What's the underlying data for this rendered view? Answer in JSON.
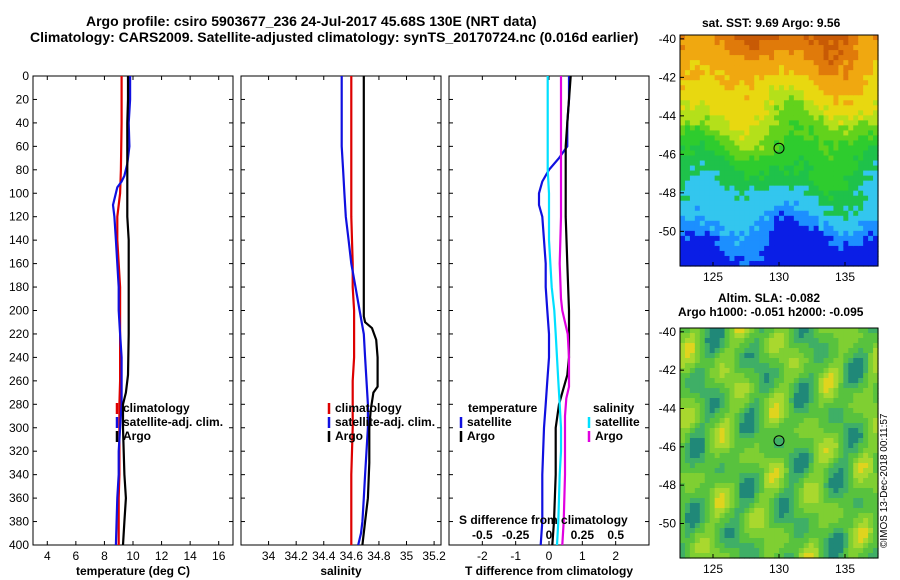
{
  "header": {
    "line1": "Argo profile: csiro 5903677_236 24-Jul-2017 45.68S 130E (NRT data)",
    "line2": "Climatology: CARS2009. Satellite-adjusted climatology: synTS_20170724.nc (0.016d earlier)"
  },
  "colors": {
    "climatology": "#dd0000",
    "satellite": "#1010e0",
    "argo": "#000000",
    "sat_salinity": "#00e0ff",
    "clim_salinity": "#e000e0"
  },
  "chart_data": [
    {
      "type": "line",
      "id": "temperature",
      "xlabel": "temperature (deg C)",
      "ylabel": "",
      "xlim": [
        3,
        17
      ],
      "ylim": [
        400,
        0
      ],
      "xticks": [
        4,
        6,
        8,
        10,
        12,
        14,
        16
      ],
      "yticks": [
        0,
        20,
        40,
        60,
        80,
        100,
        120,
        140,
        160,
        180,
        200,
        220,
        240,
        260,
        280,
        300,
        320,
        340,
        360,
        380,
        400
      ],
      "legend": [
        "climatology",
        "satellite-adj. clim.",
        "Argo"
      ],
      "series": [
        {
          "name": "climatology",
          "color": "#dd0000",
          "x": [
            9.2,
            9.2,
            9.15,
            9.1,
            9.0,
            8.9,
            8.9,
            9.0,
            9.1,
            9.1,
            9.1,
            9.1,
            9.1,
            9.05,
            9.05,
            9.05,
            9.05,
            9.0,
            9.0
          ],
          "y": [
            0,
            40,
            80,
            100,
            110,
            120,
            140,
            160,
            180,
            200,
            220,
            240,
            260,
            280,
            300,
            320,
            340,
            360,
            400
          ]
        },
        {
          "name": "satellite-adj. clim.",
          "color": "#1010e0",
          "x": [
            9.8,
            9.8,
            9.7,
            9.75,
            9.6,
            9.4,
            9.2,
            8.9,
            8.6,
            8.7,
            8.8,
            8.9,
            9.0,
            9.0,
            9.1,
            9.2,
            9.2,
            9.2,
            9.1,
            9.0,
            9.0,
            8.9,
            8.8
          ],
          "y": [
            0,
            20,
            40,
            60,
            75,
            85,
            90,
            95,
            110,
            120,
            140,
            160,
            180,
            200,
            220,
            240,
            260,
            280,
            300,
            320,
            340,
            360,
            400
          ]
        },
        {
          "name": "Argo",
          "color": "#000000",
          "x": [
            9.65,
            9.65,
            9.6,
            9.6,
            9.6,
            9.7,
            9.7,
            9.7,
            9.65,
            9.5,
            9.3,
            9.3,
            9.4,
            9.5,
            9.4,
            9.3
          ],
          "y": [
            0,
            20,
            40,
            60,
            120,
            140,
            180,
            220,
            255,
            270,
            280,
            300,
            340,
            360,
            380,
            400
          ]
        }
      ]
    },
    {
      "type": "line",
      "id": "salinity",
      "xlabel": "salinity",
      "ylabel": "",
      "xlim": [
        33.8,
        35.25
      ],
      "ylim": [
        400,
        0
      ],
      "xticks": [
        34,
        34.2,
        34.4,
        34.6,
        34.8,
        35,
        35.2
      ],
      "xticklabels": [
        "34",
        "34.2",
        "34.4",
        "34.6",
        "34.8",
        "35",
        "35.2"
      ],
      "legend": [
        "climatology",
        "satellite-adj. clim.",
        "Argo"
      ],
      "series": [
        {
          "name": "climatology",
          "color": "#dd0000",
          "x": [
            34.6,
            34.6,
            34.6,
            34.6,
            34.61,
            34.61,
            34.62,
            34.62,
            34.62,
            34.61,
            34.61,
            34.6,
            34.6,
            34.6
          ],
          "y": [
            0,
            40,
            80,
            120,
            160,
            180,
            200,
            220,
            240,
            260,
            300,
            340,
            380,
            400
          ]
        },
        {
          "name": "satellite-adj. clim.",
          "color": "#1010e0",
          "x": [
            34.53,
            34.53,
            34.53,
            34.54,
            34.55,
            34.56,
            34.58,
            34.6,
            34.63,
            34.66,
            34.69,
            34.7,
            34.71,
            34.72,
            34.72,
            34.71,
            34.7,
            34.69,
            34.68,
            34.67,
            34.66,
            34.65
          ],
          "y": [
            0,
            20,
            60,
            80,
            100,
            120,
            140,
            160,
            180,
            200,
            220,
            240,
            260,
            280,
            300,
            320,
            340,
            360,
            380,
            390,
            395,
            400
          ]
        },
        {
          "name": "Argo",
          "color": "#000000",
          "x": [
            34.69,
            34.69,
            34.69,
            34.69,
            34.69,
            34.69,
            34.7,
            34.75,
            34.78,
            34.79,
            34.79,
            34.76,
            34.74,
            34.73,
            34.73,
            34.72,
            34.7,
            34.68
          ],
          "y": [
            0,
            40,
            100,
            160,
            200,
            205,
            210,
            215,
            225,
            240,
            265,
            270,
            285,
            300,
            330,
            360,
            380,
            400
          ]
        }
      ]
    },
    {
      "type": "line",
      "id": "difference",
      "xlabel": "T difference from climatology",
      "ylabel": "",
      "xlim": [
        -3,
        3
      ],
      "ylim": [
        400,
        0
      ],
      "xticks": [
        -2,
        -1,
        0,
        1,
        2
      ],
      "xticks_secondary": {
        "label": "S difference from climatology",
        "ticks": [
          -0.5,
          -0.25,
          0,
          0.25,
          0.5
        ],
        "ticklabels": [
          "-0.5",
          "-0.25",
          "0",
          "0.25",
          "0.5"
        ],
        "scale": "x2 of T axis"
      },
      "legend_temperature": {
        "title": "temperature",
        "items": [
          "satellite",
          "Argo"
        ]
      },
      "legend_salinity": {
        "title": "salinity",
        "items": [
          "satellite",
          "Argo"
        ]
      },
      "series": [
        {
          "name": "T satellite",
          "color": "#1010e0",
          "x": [
            0.6,
            0.6,
            0.55,
            0.55,
            0.3,
            0.0,
            -0.2,
            -0.3,
            -0.3,
            -0.2,
            -0.15,
            -0.1,
            -0.1,
            -0.05,
            0,
            0,
            -0.05,
            -0.1,
            -0.15,
            -0.2,
            -0.2,
            -0.25
          ],
          "y": [
            0,
            20,
            40,
            60,
            70,
            80,
            90,
            100,
            110,
            120,
            140,
            160,
            180,
            200,
            220,
            240,
            260,
            280,
            300,
            340,
            380,
            400
          ]
        },
        {
          "name": "T Argo",
          "color": "#000000",
          "x": [
            0.65,
            0.6,
            0.55,
            0.5,
            0.5,
            0.55,
            0.6,
            0.6,
            0.55,
            0.4,
            0.3,
            0.2,
            0.2,
            0.15,
            0.1
          ],
          "y": [
            0,
            20,
            40,
            60,
            120,
            160,
            200,
            240,
            255,
            270,
            280,
            300,
            340,
            380,
            400
          ]
        },
        {
          "name": "S satellite",
          "color": "#00e0ff",
          "x": [
            -0.01,
            -0.01,
            -0.01,
            0.0,
            0.0,
            0.02,
            0.04,
            0.05,
            0.06,
            0.07,
            0.08,
            0.09,
            0.09,
            0.08,
            0.07,
            0.06
          ],
          "y": [
            0,
            40,
            80,
            100,
            140,
            180,
            200,
            220,
            240,
            260,
            280,
            300,
            320,
            340,
            380,
            400
          ]
        },
        {
          "name": "S Argo",
          "color": "#e000e0",
          "x": [
            0.09,
            0.09,
            0.09,
            0.09,
            0.08,
            0.09,
            0.1,
            0.12,
            0.14,
            0.15,
            0.15,
            0.13,
            0.12,
            0.12,
            0.12,
            0.11,
            0.1
          ],
          "y": [
            0,
            40,
            80,
            120,
            160,
            190,
            200,
            210,
            220,
            240,
            265,
            275,
            290,
            300,
            340,
            380,
            400
          ]
        }
      ]
    },
    {
      "type": "heatmap",
      "id": "sst-map",
      "title": "sat. SST: 9.69 Argo: 9.56",
      "xlim": [
        122.5,
        137.5
      ],
      "ylim": [
        -51.8,
        -39.8
      ],
      "xticks": [
        125,
        130,
        135
      ],
      "yticks": [
        -40,
        -42,
        -44,
        -46,
        -48,
        -50
      ],
      "yticklabels": [
        "-40",
        "-42",
        "-44",
        "-46",
        "-48",
        "-50"
      ],
      "marker": {
        "lon": 130,
        "lat": -45.68
      }
    },
    {
      "type": "heatmap",
      "id": "sla-map",
      "title": "Altim. SLA: -0.082",
      "subtitle": "Argo h1000: -0.051 h2000: -0.095",
      "xlim": [
        122.5,
        137.5
      ],
      "ylim": [
        -51.8,
        -39.8
      ],
      "xticks": [
        125,
        130,
        135
      ],
      "yticks": [
        -40,
        -42,
        -44,
        -46,
        -48,
        -50
      ],
      "yticklabels": [
        "-40",
        "-42",
        "-44",
        "-46",
        "-48",
        "-50"
      ],
      "marker": {
        "lon": 130,
        "lat": -45.68
      }
    }
  ],
  "footer": {
    "stamp": "©IMOS 13-Dec-2018 00:11:57"
  }
}
